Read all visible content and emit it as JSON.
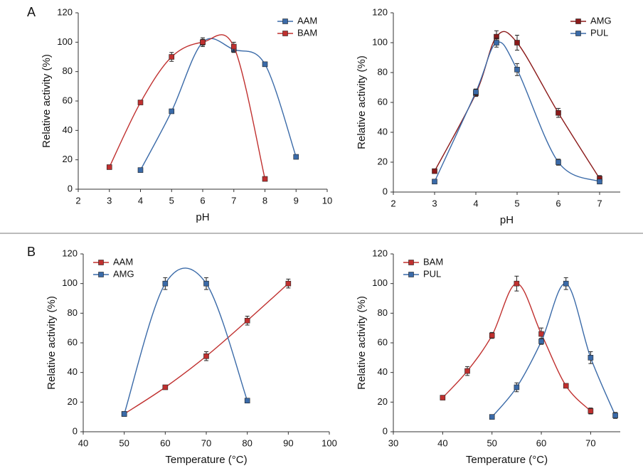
{
  "chart_data": [
    {
      "type": "line",
      "panel": "A",
      "xlabel": "pH",
      "ylabel": "Relative activity (%)",
      "xlim": [
        2,
        10
      ],
      "xticks": [
        2,
        3,
        4,
        5,
        6,
        7,
        8,
        9,
        10
      ],
      "ylim": [
        0,
        120
      ],
      "yticks": [
        0,
        20,
        40,
        60,
        80,
        100,
        120
      ],
      "legend": "upper right",
      "series": [
        {
          "name": "AAM",
          "color": "#3a6aa8",
          "x": [
            4,
            5,
            6,
            7,
            8,
            9
          ],
          "values": [
            13,
            53,
            100,
            95,
            85,
            22
          ],
          "errors": [
            1,
            1,
            3,
            2,
            1,
            1
          ]
        },
        {
          "name": "BAM",
          "color": "#c0302f",
          "x": [
            3,
            4,
            5,
            6,
            7,
            8
          ],
          "values": [
            15,
            59,
            90,
            100,
            97,
            7
          ],
          "errors": [
            1,
            1,
            3,
            2,
            3,
            1
          ]
        }
      ]
    },
    {
      "type": "line",
      "xlabel": "pH",
      "ylabel": "Relative activity (%)",
      "xlim": [
        2,
        7.5
      ],
      "xticks": [
        2,
        3,
        4,
        5,
        6,
        7
      ],
      "ylim": [
        0,
        120
      ],
      "yticks": [
        0,
        20,
        40,
        60,
        80,
        100,
        120
      ],
      "legend": "upper right",
      "series": [
        {
          "name": "AMG",
          "color": "#8b1a1a",
          "x": [
            3,
            4,
            4.5,
            5,
            6,
            7
          ],
          "values": [
            14,
            66,
            104,
            100,
            53,
            9
          ],
          "errors": [
            1,
            2,
            4,
            5,
            3,
            2
          ]
        },
        {
          "name": "PUL",
          "color": "#3a6aa8",
          "x": [
            3,
            4,
            4.5,
            5,
            6,
            7
          ],
          "values": [
            7,
            67,
            100,
            82,
            20,
            7
          ],
          "errors": [
            1,
            2,
            3,
            4,
            2,
            1
          ]
        }
      ]
    },
    {
      "type": "line",
      "panel": "B",
      "xlabel": "Temperature (°C)",
      "ylabel": "Relative activity (%)",
      "xlim": [
        40,
        100
      ],
      "xticks": [
        40,
        50,
        60,
        70,
        80,
        90,
        100
      ],
      "ylim": [
        0,
        120
      ],
      "yticks": [
        0,
        20,
        40,
        60,
        80,
        100,
        120
      ],
      "legend": "upper left",
      "series": [
        {
          "name": "AAM",
          "color": "#c0302f",
          "x": [
            50,
            60,
            70,
            80,
            90
          ],
          "values": [
            12,
            30,
            51,
            75,
            100
          ],
          "errors": [
            1,
            1,
            3,
            3,
            3
          ]
        },
        {
          "name": "AMG",
          "color": "#3a6aa8",
          "x": [
            50,
            60,
            70,
            80
          ],
          "values": [
            12,
            100,
            100,
            21
          ],
          "errors": [
            1,
            4,
            4,
            1
          ]
        }
      ]
    },
    {
      "type": "line",
      "xlabel": "Temperature (°C)",
      "ylabel": "Relative activity (%)",
      "xlim": [
        30,
        76
      ],
      "xticks": [
        30,
        40,
        50,
        60,
        70
      ],
      "ylim": [
        0,
        120
      ],
      "yticks": [
        0,
        20,
        40,
        60,
        80,
        100,
        120
      ],
      "legend": "upper left",
      "series": [
        {
          "name": "BAM",
          "color": "#c0302f",
          "x": [
            40,
            45,
            50,
            55,
            60,
            65,
            70
          ],
          "values": [
            23,
            41,
            65,
            100,
            66,
            31,
            14
          ],
          "errors": [
            1,
            3,
            2,
            5,
            4,
            1,
            2
          ]
        },
        {
          "name": "PUL",
          "color": "#3a6aa8",
          "x": [
            50,
            55,
            60,
            65,
            70,
            75
          ],
          "values": [
            10,
            30,
            61,
            100,
            50,
            11
          ],
          "errors": [
            1,
            3,
            2,
            4,
            4,
            2
          ]
        }
      ]
    }
  ]
}
